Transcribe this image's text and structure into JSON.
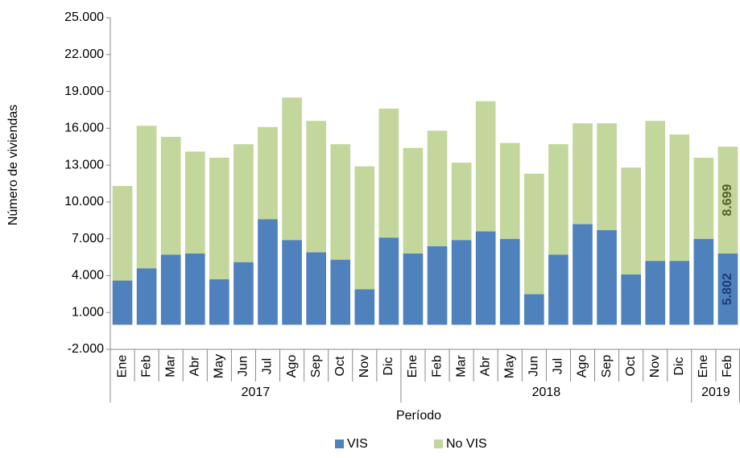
{
  "chart_data": {
    "type": "stacked_bar",
    "y_label": "Número de viviendas",
    "x_label": "Período",
    "categories": [
      "Ene",
      "Feb",
      "Mar",
      "Abr",
      "May",
      "Jun",
      "Jul",
      "Ago",
      "Sep",
      "Oct",
      "Nov",
      "Dic",
      "Ene",
      "Feb",
      "Mar",
      "Abr",
      "May",
      "Jun",
      "Jul",
      "Ago",
      "Sep",
      "Oct",
      "Nov",
      "Dic",
      "Ene",
      "Feb"
    ],
    "category_years": [
      "2017",
      "2017",
      "2017",
      "2017",
      "2017",
      "2017",
      "2017",
      "2017",
      "2017",
      "2017",
      "2017",
      "2017",
      "2018",
      "2018",
      "2018",
      "2018",
      "2018",
      "2018",
      "2018",
      "2018",
      "2018",
      "2018",
      "2018",
      "2018",
      "2019",
      "2019"
    ],
    "series": [
      {
        "name": "VIS",
        "color": "#4f81bd",
        "label_color": "#1f3b75",
        "values": [
          3600,
          4600,
          5700,
          5800,
          3700,
          5100,
          8600,
          6900,
          5900,
          5300,
          2900,
          7100,
          5800,
          6400,
          6900,
          7600,
          7000,
          2500,
          5700,
          8200,
          7700,
          4100,
          5200,
          5200,
          7000,
          5802
        ],
        "value_labels": [
          null,
          null,
          null,
          null,
          null,
          null,
          null,
          null,
          null,
          null,
          null,
          null,
          null,
          null,
          null,
          null,
          null,
          null,
          null,
          null,
          null,
          null,
          null,
          null,
          null,
          "5.802"
        ]
      },
      {
        "name": "No VIS",
        "color": "#c3d69b",
        "label_color": "#4f6228",
        "values": [
          7700,
          11600,
          9600,
          8300,
          9900,
          9600,
          7500,
          11600,
          10700,
          9400,
          10000,
          10500,
          8600,
          9400,
          6300,
          10600,
          7800,
          9800,
          9000,
          8200,
          8700,
          8700,
          11400,
          10300,
          6600,
          8699
        ],
        "value_labels": [
          null,
          null,
          null,
          null,
          null,
          null,
          null,
          null,
          null,
          null,
          null,
          null,
          null,
          null,
          null,
          null,
          null,
          null,
          null,
          null,
          null,
          null,
          null,
          null,
          null,
          "8.699"
        ]
      }
    ],
    "ylim": [
      -2000,
      25000
    ],
    "yticks": [
      {
        "value": -2000,
        "label": "-2.000"
      },
      {
        "value": 1000,
        "label": "1.000"
      },
      {
        "value": 4000,
        "label": "4.000"
      },
      {
        "value": 7000,
        "label": "7.000"
      },
      {
        "value": 10000,
        "label": "10.000"
      },
      {
        "value": 13000,
        "label": "13.000"
      },
      {
        "value": 16000,
        "label": "16.000"
      },
      {
        "value": 19000,
        "label": "19.000"
      },
      {
        "value": 22000,
        "label": "22.000"
      },
      {
        "value": 25000,
        "label": "25.000"
      }
    ],
    "legend": "bottom"
  }
}
